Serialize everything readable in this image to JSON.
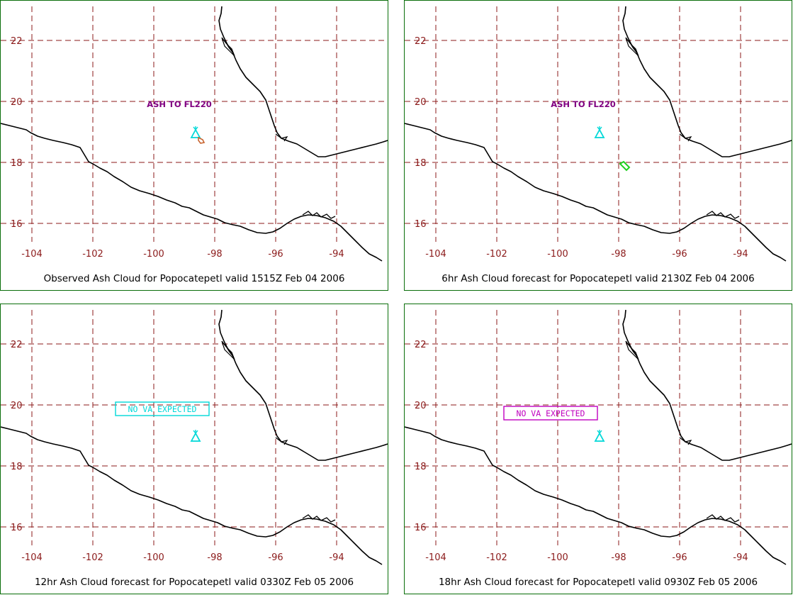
{
  "colors": {
    "panel_border": "#0a6e0a",
    "grid": "#8b1a1a",
    "tick_label": "#8b1a1a",
    "coastline": "#000000",
    "ash_label": "#800080",
    "volcano_symbol": "#00d8d8",
    "observed_ash_polygon": "#c86430",
    "forecast_ash_polygon": "#20d020",
    "no_va_cyan": "#00d8d8",
    "no_va_magenta": "#c000c0"
  },
  "axes": {
    "lon_ticks": [
      "-104",
      "-102",
      "-100",
      "-98",
      "-96",
      "-94"
    ],
    "lat_ticks": [
      "22",
      "20",
      "18",
      "16"
    ]
  },
  "panels": [
    {
      "caption": "Observed Ash Cloud for Popocatepetl valid 1515Z Feb 04 2006",
      "label": "ASH TO FL220",
      "label_style": "plain",
      "ash_polygon": "observed"
    },
    {
      "caption": "6hr Ash Cloud forecast for Popocatepetl valid 2130Z Feb 04 2006",
      "label": "ASH TO FL220",
      "label_style": "plain",
      "ash_polygon": "forecast"
    },
    {
      "caption": "12hr Ash Cloud forecast for Popocatepetl valid 0330Z Feb 05 2006",
      "label": "NO VA EXPECTED",
      "label_style": "box-cyan",
      "ash_polygon": "none"
    },
    {
      "caption": "18hr Ash Cloud forecast for Popocatepetl valid 0930Z Feb 05 2006",
      "label": "NO VA EXPECTED",
      "label_style": "box-magenta",
      "ash_polygon": "none"
    }
  ]
}
